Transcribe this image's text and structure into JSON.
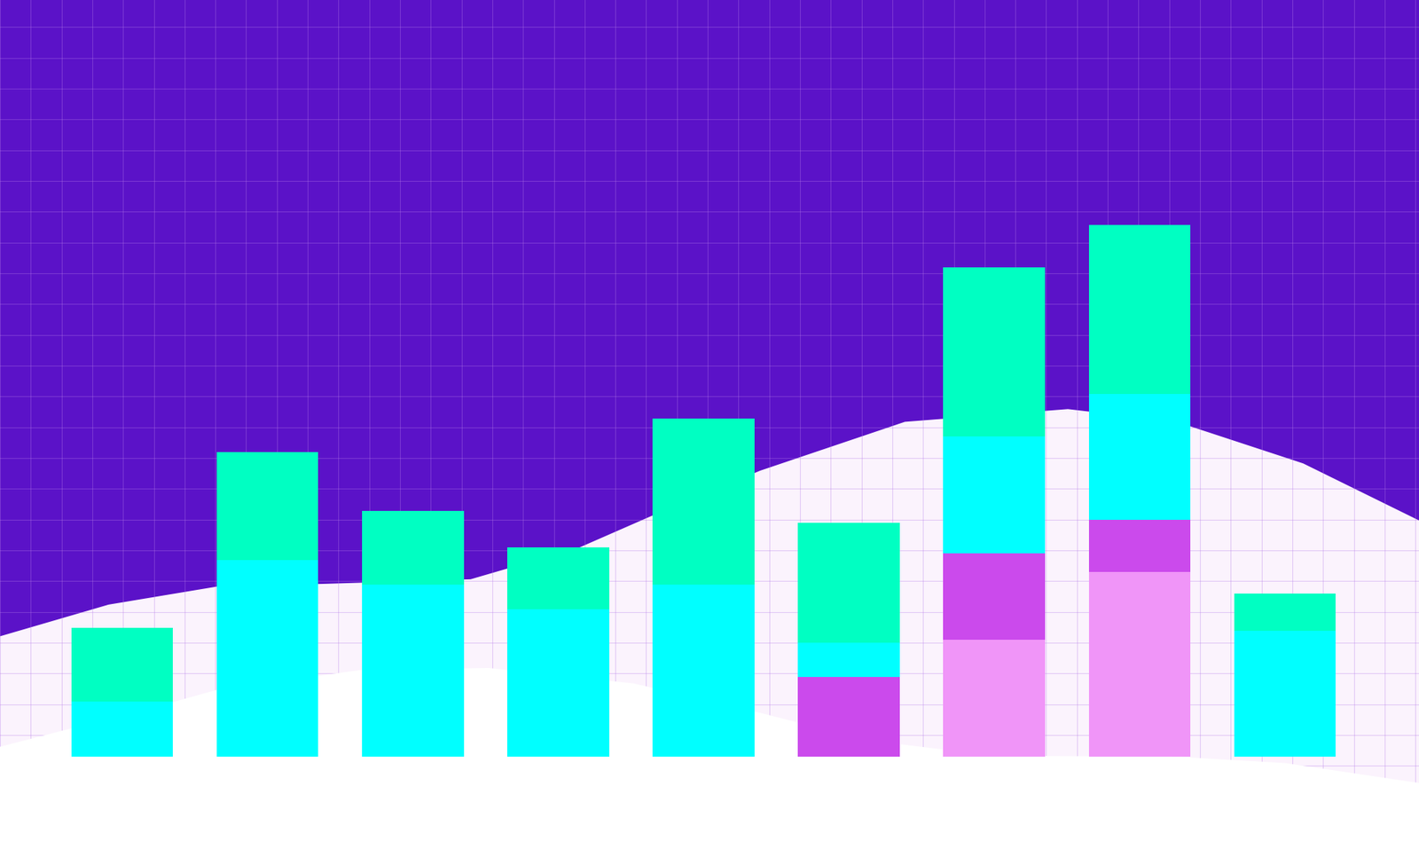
{
  "chart_data": {
    "type": "bar",
    "stacked": true,
    "tick_labels": false,
    "categories": [
      null,
      null,
      null,
      null,
      null,
      null,
      null,
      null,
      null
    ],
    "ylim": [
      0,
      24.6
    ],
    "yticks": [],
    "series": [
      {
        "color": "#F095F8",
        "values": [
          0,
          0,
          0,
          0,
          0,
          0,
          3.8,
          6.0,
          0
        ]
      },
      {
        "color": "#CB4AEC",
        "values": [
          0,
          0,
          0,
          0,
          0,
          2.6,
          2.8,
          1.7,
          0
        ]
      },
      {
        "color": "#00FFFF",
        "values": [
          1.8,
          6.4,
          5.6,
          4.8,
          5.6,
          1.1,
          3.8,
          4.1,
          4.1
        ]
      },
      {
        "color": "#00FFC2",
        "values": [
          2.4,
          3.5,
          2.4,
          2.0,
          5.4,
          3.9,
          5.5,
          5.5,
          1.2
        ]
      }
    ]
  }
}
